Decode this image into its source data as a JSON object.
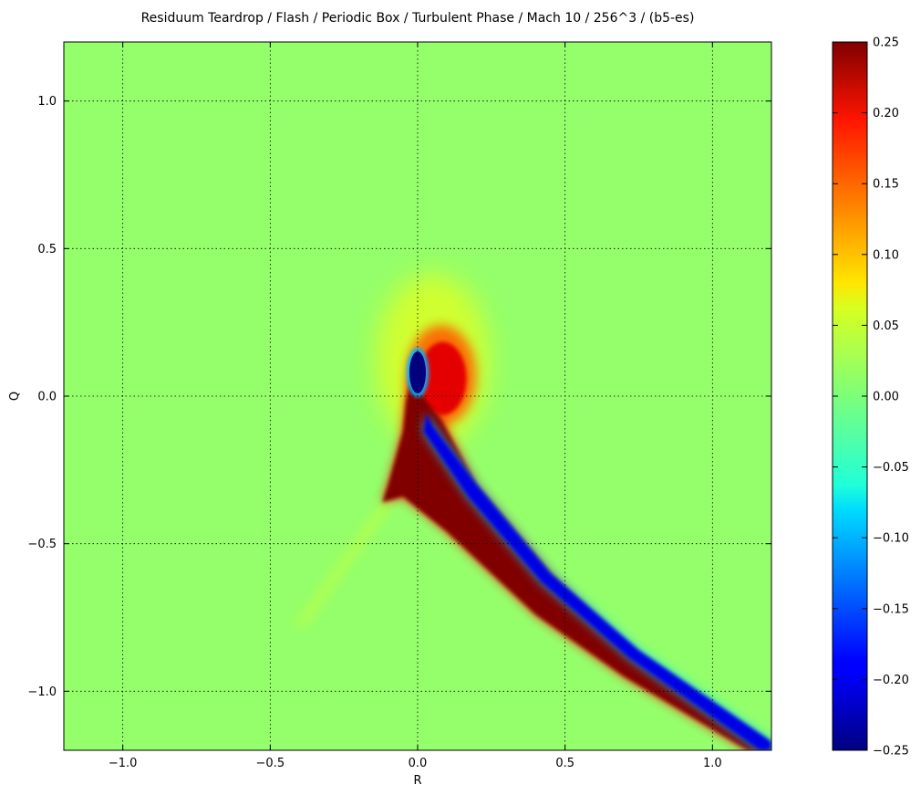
{
  "chart_data": {
    "type": "heatmap",
    "title": "Residuum Teardrop / Flash / Periodic Box / Turbulent Phase / Mach 10 / 256^3 / (b5-es)",
    "xlabel": "R",
    "ylabel": "Q",
    "xlim": [
      -1.2,
      1.2
    ],
    "ylim": [
      -1.2,
      1.2
    ],
    "x_ticks": [
      -1.0,
      -0.5,
      0.0,
      0.5,
      1.0
    ],
    "x_tick_labels": [
      "−1.0",
      "−0.5",
      "0.0",
      "0.5",
      "1.0"
    ],
    "y_ticks": [
      1.0,
      0.5,
      0.0,
      -0.5,
      -1.0
    ],
    "y_tick_labels": [
      "1.0",
      "0.5",
      "0.0",
      "−0.5",
      "−1.0"
    ],
    "grid": true,
    "colormap": "jet",
    "colorbar": {
      "vmin": -0.25,
      "vmax": 0.25,
      "ticks": [
        0.25,
        0.2,
        0.15,
        0.1,
        0.05,
        0.0,
        -0.05,
        -0.1,
        -0.15,
        -0.2,
        -0.25
      ],
      "tick_labels": [
        "0.25",
        "0.20",
        "0.15",
        "0.10",
        "0.05",
        "0.00",
        "−0.05",
        "−0.10",
        "−0.15",
        "−0.20",
        "−0.25"
      ]
    },
    "background_value": 0.01,
    "features": [
      {
        "name": "yellow-halo",
        "value": 0.05
      },
      {
        "name": "red-lobe",
        "value": 0.2
      },
      {
        "name": "positive-tail",
        "value": 0.25
      },
      {
        "name": "negative-core",
        "value": -0.25
      },
      {
        "name": "negative-tail",
        "value": -0.2
      }
    ],
    "colors": {
      "background": "#7dff7a",
      "positive_max": "#800000",
      "negative_max": "#000080"
    }
  }
}
